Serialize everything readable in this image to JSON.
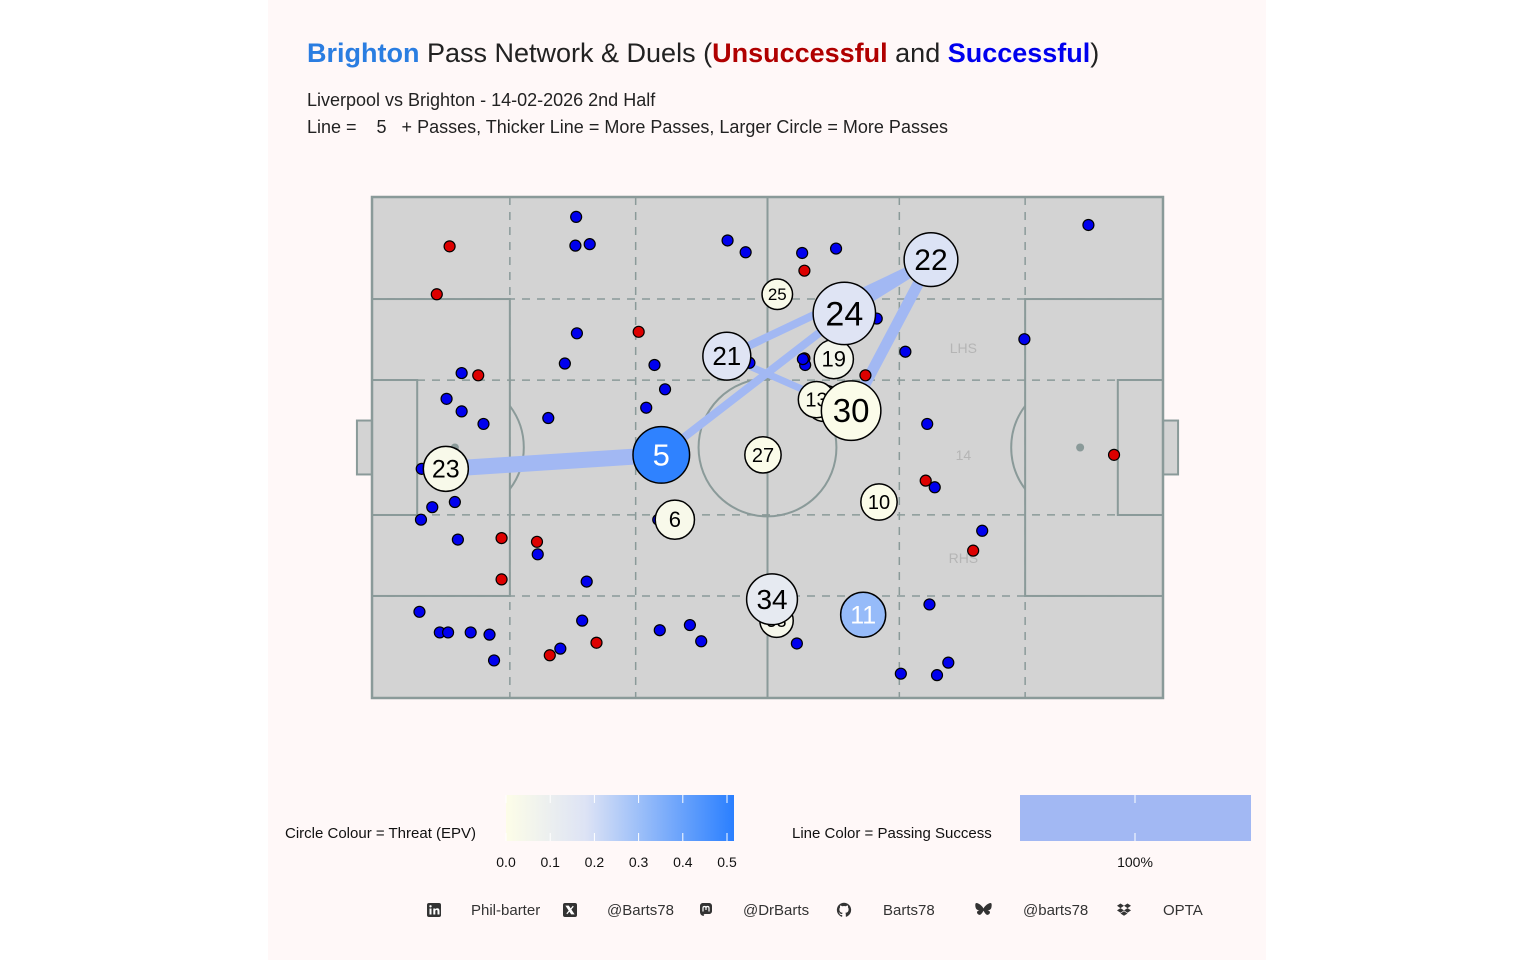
{
  "title": {
    "team": "Brighton",
    "mid": " Pass Network & Duels (",
    "unsuccessful": "Unsuccessful",
    "and": " and ",
    "successful": "Successful",
    "close": ")",
    "team_color": "#2a7de1",
    "unsuccessful_color": "#b00000",
    "successful_color": "#0000ee"
  },
  "subtitle1": "Liverpool vs Brighton - 14-02-2026 2nd Half",
  "subtitle2": "Line =    5   + Passes, Thicker Line = More Passes, Larger Circle = More Passes",
  "pitch_labels": {
    "lhs": "LHS",
    "centre": "14",
    "rhs": "RHS"
  },
  "legend": {
    "circle_title": "Circle Colour = Threat (EPV)",
    "circle_ticks": [
      "0.0",
      "0.1",
      "0.2",
      "0.3",
      "0.4",
      "0.5"
    ],
    "line_title": "Line Color = Passing Success",
    "line_tick": "100%"
  },
  "footer": {
    "linkedin": "Phil-barter",
    "x": "@Barts78",
    "mastodon": "@DrBarts",
    "github": "Barts78",
    "bluesky": "@barts78",
    "source": "OPTA"
  },
  "colors": {
    "pitch": "#d3d3d3",
    "pitch_lines": "#8a9a99",
    "duel_unsuccessful": "#dd0000",
    "duel_successful": "#0000ee",
    "pass_line": "#a2b8f3",
    "epv_low": "#fdfde8",
    "epv_high": "#2a7fff"
  },
  "chart_data": {
    "type": "scatter",
    "pitch_length": 105,
    "pitch_width": 68,
    "players": [
      {
        "number": "5",
        "x": 38.4,
        "y": 33.0,
        "passes": 14,
        "epv": 0.5
      },
      {
        "number": "23",
        "x": 9.8,
        "y": 31.1,
        "passes": 10,
        "epv": 0.03
      },
      {
        "number": "22",
        "x": 74.2,
        "y": 59.5,
        "passes": 13,
        "epv": 0.18
      },
      {
        "number": "24",
        "x": 62.7,
        "y": 52.2,
        "passes": 16,
        "epv": 0.17
      },
      {
        "number": "21",
        "x": 47.1,
        "y": 46.4,
        "passes": 11,
        "epv": 0.17
      },
      {
        "number": "19",
        "x": 61.3,
        "y": 46.0,
        "passes": 8,
        "epv": 0.05
      },
      {
        "number": "17",
        "x": 60.0,
        "y": 40.0,
        "passes": 7,
        "epv": 0.02
      },
      {
        "number": "13",
        "x": 59.0,
        "y": 40.5,
        "passes": 7,
        "epv": 0.02
      },
      {
        "number": "30",
        "x": 63.6,
        "y": 39.0,
        "passes": 15,
        "epv": 0.01
      },
      {
        "number": "25",
        "x": 53.8,
        "y": 54.8,
        "passes": 5,
        "epv": 0.02
      },
      {
        "number": "27",
        "x": 51.9,
        "y": 33.0,
        "passes": 7,
        "epv": 0.01
      },
      {
        "number": "10",
        "x": 67.3,
        "y": 26.6,
        "passes": 7,
        "epv": 0.01
      },
      {
        "number": "6",
        "x": 40.2,
        "y": 24.2,
        "passes": 8,
        "epv": 0.03
      },
      {
        "number": "34",
        "x": 53.1,
        "y": 13.4,
        "passes": 12,
        "epv": 0.13
      },
      {
        "number": "53",
        "x": 53.7,
        "y": 10.5,
        "passes": 6,
        "epv": 0.04
      },
      {
        "number": "11",
        "x": 65.2,
        "y": 11.3,
        "passes": 10,
        "epv": 0.31
      }
    ],
    "links": [
      {
        "from": "23",
        "to": "5",
        "passes": 14
      },
      {
        "from": "5",
        "to": "24",
        "passes": 6
      },
      {
        "from": "24",
        "to": "22",
        "passes": 8
      },
      {
        "from": "21",
        "to": "22",
        "passes": 6
      },
      {
        "from": "30",
        "to": "22",
        "passes": 9
      },
      {
        "from": "21",
        "to": "30",
        "passes": 5
      }
    ],
    "duels": [
      {
        "x": 10.3,
        "y": 61.3,
        "won": false
      },
      {
        "x": 8.6,
        "y": 54.8,
        "won": false
      },
      {
        "x": 14.1,
        "y": 43.8,
        "won": false
      },
      {
        "x": 17.2,
        "y": 21.7,
        "won": false
      },
      {
        "x": 17.2,
        "y": 16.1,
        "won": false
      },
      {
        "x": 21.9,
        "y": 21.2,
        "won": false
      },
      {
        "x": 23.6,
        "y": 5.8,
        "won": false
      },
      {
        "x": 29.8,
        "y": 7.5,
        "won": false
      },
      {
        "x": 35.4,
        "y": 49.7,
        "won": false
      },
      {
        "x": 57.4,
        "y": 58.0,
        "won": false
      },
      {
        "x": 57.4,
        "y": 46.1,
        "won": false
      },
      {
        "x": 65.5,
        "y": 43.8,
        "won": false
      },
      {
        "x": 73.5,
        "y": 29.5,
        "won": false
      },
      {
        "x": 79.8,
        "y": 20.0,
        "won": false
      },
      {
        "x": 98.5,
        "y": 33.0,
        "won": false
      },
      {
        "x": 27.1,
        "y": 65.3,
        "won": true
      },
      {
        "x": 27.0,
        "y": 61.4,
        "won": true
      },
      {
        "x": 28.9,
        "y": 61.6,
        "won": true
      },
      {
        "x": 47.2,
        "y": 62.1,
        "won": true
      },
      {
        "x": 49.6,
        "y": 60.5,
        "won": true
      },
      {
        "x": 57.1,
        "y": 60.4,
        "won": true
      },
      {
        "x": 61.6,
        "y": 61.0,
        "won": true
      },
      {
        "x": 95.1,
        "y": 64.2,
        "won": true
      },
      {
        "x": 27.2,
        "y": 49.5,
        "won": true
      },
      {
        "x": 25.6,
        "y": 45.4,
        "won": true
      },
      {
        "x": 37.5,
        "y": 45.2,
        "won": true
      },
      {
        "x": 38.9,
        "y": 41.9,
        "won": true
      },
      {
        "x": 36.4,
        "y": 39.4,
        "won": true
      },
      {
        "x": 23.4,
        "y": 38.0,
        "won": true
      },
      {
        "x": 57.5,
        "y": 45.2,
        "won": true
      },
      {
        "x": 50.1,
        "y": 45.5,
        "won": true
      },
      {
        "x": 70.8,
        "y": 47.0,
        "won": true
      },
      {
        "x": 86.6,
        "y": 48.7,
        "won": true
      },
      {
        "x": 11.9,
        "y": 44.1,
        "won": true
      },
      {
        "x": 9.9,
        "y": 40.6,
        "won": true
      },
      {
        "x": 11.9,
        "y": 38.9,
        "won": true
      },
      {
        "x": 14.8,
        "y": 37.2,
        "won": true
      },
      {
        "x": 6.6,
        "y": 31.1,
        "won": true
      },
      {
        "x": 8.0,
        "y": 25.9,
        "won": true
      },
      {
        "x": 11.0,
        "y": 26.6,
        "won": true
      },
      {
        "x": 6.5,
        "y": 24.2,
        "won": true
      },
      {
        "x": 11.4,
        "y": 21.5,
        "won": true
      },
      {
        "x": 22.0,
        "y": 19.5,
        "won": true
      },
      {
        "x": 28.5,
        "y": 15.8,
        "won": true
      },
      {
        "x": 6.3,
        "y": 11.7,
        "won": true
      },
      {
        "x": 9.0,
        "y": 8.9,
        "won": true
      },
      {
        "x": 10.1,
        "y": 8.9,
        "won": true
      },
      {
        "x": 13.1,
        "y": 8.9,
        "won": true
      },
      {
        "x": 15.6,
        "y": 8.6,
        "won": true
      },
      {
        "x": 16.2,
        "y": 5.1,
        "won": true
      },
      {
        "x": 25.0,
        "y": 6.7,
        "won": true
      },
      {
        "x": 27.9,
        "y": 10.5,
        "won": true
      },
      {
        "x": 38.2,
        "y": 9.2,
        "won": true
      },
      {
        "x": 42.2,
        "y": 9.9,
        "won": true
      },
      {
        "x": 43.7,
        "y": 7.7,
        "won": true
      },
      {
        "x": 56.4,
        "y": 7.4,
        "won": true
      },
      {
        "x": 74.0,
        "y": 12.7,
        "won": true
      },
      {
        "x": 74.7,
        "y": 28.6,
        "won": true
      },
      {
        "x": 81.0,
        "y": 22.7,
        "won": true
      },
      {
        "x": 70.2,
        "y": 3.3,
        "won": true
      },
      {
        "x": 75.0,
        "y": 3.1,
        "won": true
      },
      {
        "x": 76.5,
        "y": 4.8,
        "won": true
      },
      {
        "x": 38.0,
        "y": 24.2,
        "won": true
      },
      {
        "x": 73.7,
        "y": 37.2,
        "won": true
      },
      {
        "x": 57.2,
        "y": 46.0,
        "won": true
      },
      {
        "x": 61.1,
        "y": 51.8,
        "won": true
      },
      {
        "x": 67.0,
        "y": 51.5,
        "won": true
      },
      {
        "x": 53.8,
        "y": 54.6,
        "won": true
      }
    ]
  }
}
